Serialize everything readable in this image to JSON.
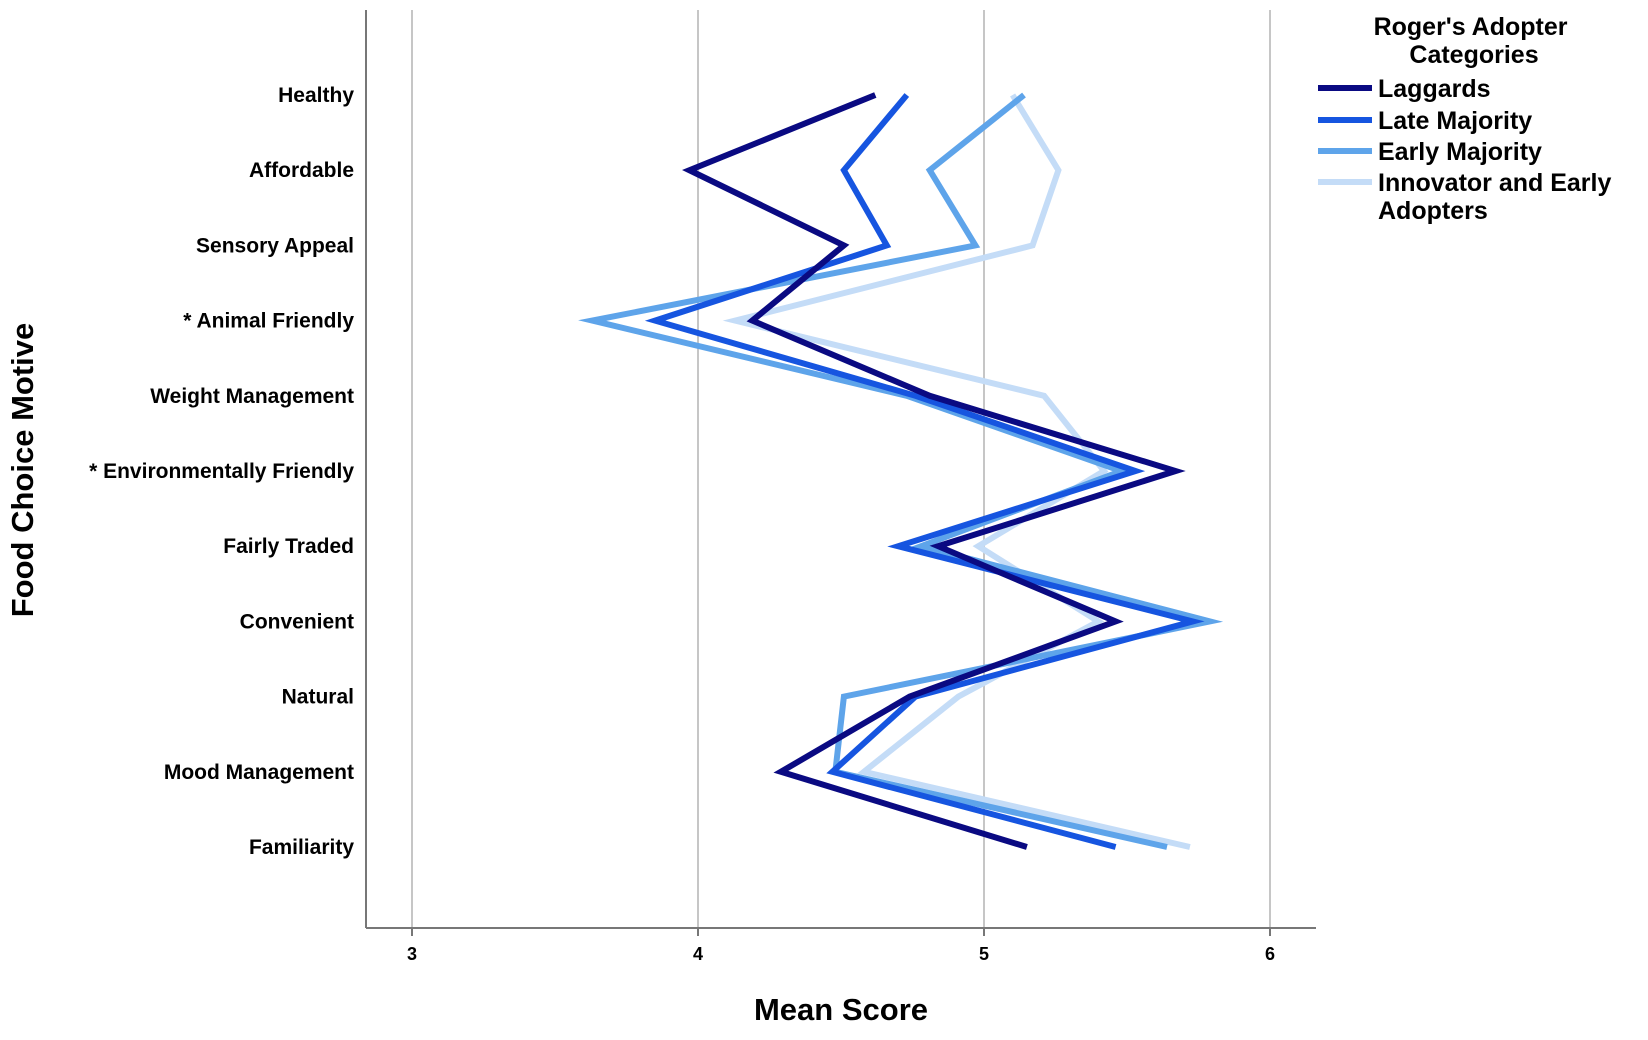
{
  "chart_data": {
    "type": "line",
    "orientation": "horizontal",
    "xlabel": "Mean Score",
    "ylabel": "Food Choice Motive",
    "xlim": [
      3,
      6
    ],
    "xticks": [
      "3",
      "4",
      "5",
      "6"
    ],
    "grid": true,
    "legend_position": "top-right",
    "legend_title": "Roger's Adopter Categories",
    "categories": [
      "Healthy",
      "Affordable",
      "Sensory Appeal",
      "* Animal Friendly",
      "Weight Management",
      "* Environmentally Friendly",
      "Fairly Traded",
      "Convenient",
      "Natural",
      "Mood Management",
      "Familiarity"
    ],
    "series": [
      {
        "name": "Laggards",
        "color": "#0a0a82",
        "values": [
          4.62,
          3.97,
          4.51,
          4.19,
          4.81,
          5.67,
          4.84,
          5.46,
          4.74,
          4.29,
          5.15
        ]
      },
      {
        "name": "Late Majority",
        "color": "#1655e0",
        "values": [
          4.73,
          4.51,
          4.66,
          3.85,
          4.76,
          5.53,
          4.7,
          5.73,
          4.76,
          4.47,
          5.46
        ]
      },
      {
        "name": "Early Majority",
        "color": "#5ea4ea",
        "values": [
          5.14,
          4.81,
          4.97,
          3.63,
          4.73,
          5.48,
          4.78,
          5.79,
          4.51,
          4.48,
          5.64
        ]
      },
      {
        "name": "Innovator and Early Adopters",
        "color": "#c4dcf7",
        "values": [
          5.1,
          5.26,
          5.17,
          4.13,
          5.21,
          5.42,
          4.98,
          5.4,
          4.91,
          4.58,
          5.72
        ]
      }
    ]
  }
}
